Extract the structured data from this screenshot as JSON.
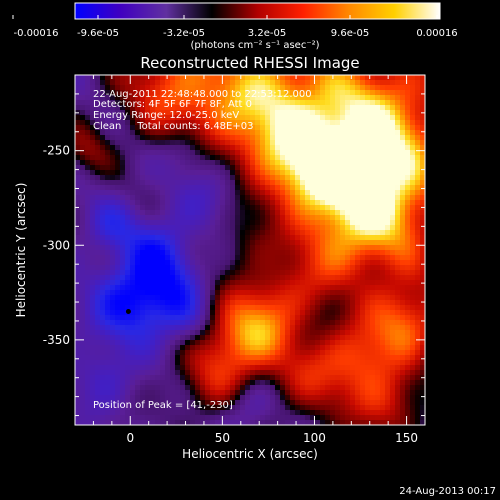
{
  "chart_data": {
    "type": "heatmap",
    "title": "Reconstructed RHESSI Image",
    "xlabel": "Heliocentric X (arcsec)",
    "ylabel": "Heliocentric Y (arcsec)",
    "xlim": [
      -30,
      160
    ],
    "ylim": [
      -395,
      -210
    ],
    "x_ticks": [
      0,
      50,
      100,
      150
    ],
    "x_tick_labels": [
      "0",
      "50",
      "100",
      "150"
    ],
    "y_ticks": [
      -250,
      -300,
      -350
    ],
    "y_tick_labels": [
      "-250",
      "-300",
      "-350"
    ],
    "colorbar": {
      "range": [
        -0.00016,
        0.00016
      ],
      "tick_labels": [
        "-0.00016",
        "-9.6e-05",
        "-3.2e-05",
        "3.2e-05",
        "9.6e-05",
        "0.00016"
      ],
      "label": "(photons cm⁻² s⁻¹ asec⁻²)",
      "colors": [
        "#0000ff",
        "#4000c0",
        "#6030a0",
        "#000000",
        "#b00000",
        "#ff2000",
        "#ff8800",
        "#ffd000",
        "#ffffff"
      ]
    },
    "annotations": {
      "time_range": "22-Aug-2011 22:48:48.000 to 22:53:12.000",
      "detectors": "Detectors: 4F 5F 6F 7F 8F, Att 0",
      "energy_range": "Energy Range: 12.0-25.0 keV",
      "method": "Clean     Total counts: 6.48E+03",
      "peak": "Position of Peak = [41,-230]"
    },
    "marker": {
      "x": -1,
      "y": -335
    },
    "blobs": [
      {
        "x": 70,
        "y": -225,
        "r": 28,
        "a": 1.0
      },
      {
        "x": 135,
        "y": -235,
        "r": 30,
        "a": 0.95
      },
      {
        "x": 125,
        "y": -265,
        "r": 22,
        "a": 0.8
      },
      {
        "x": 20,
        "y": -215,
        "r": 20,
        "a": 0.6
      },
      {
        "x": 95,
        "y": -260,
        "r": 18,
        "a": 0.6
      },
      {
        "x": 145,
        "y": -290,
        "r": 20,
        "a": 0.55
      },
      {
        "x": 110,
        "y": -305,
        "r": 18,
        "a": 0.55
      },
      {
        "x": 60,
        "y": -350,
        "r": 16,
        "a": 0.9
      },
      {
        "x": 80,
        "y": -330,
        "r": 15,
        "a": 0.5
      },
      {
        "x": 150,
        "y": -340,
        "r": 16,
        "a": 0.8
      },
      {
        "x": 125,
        "y": -360,
        "r": 14,
        "a": 0.5
      },
      {
        "x": 100,
        "y": -370,
        "r": 18,
        "a": 0.5
      },
      {
        "x": 140,
        "y": -385,
        "r": 14,
        "a": 0.55
      },
      {
        "x": 40,
        "y": -375,
        "r": 14,
        "a": 0.35
      },
      {
        "x": 60,
        "y": -300,
        "r": 12,
        "a": 0.25
      },
      {
        "x": -25,
        "y": -250,
        "r": 10,
        "a": 0.35
      },
      {
        "x": 0,
        "y": -330,
        "r": 15,
        "a": -0.7
      },
      {
        "x": 20,
        "y": -320,
        "r": 14,
        "a": -0.45
      },
      {
        "x": 15,
        "y": -300,
        "r": 12,
        "a": -0.4
      },
      {
        "x": -10,
        "y": -290,
        "r": 10,
        "a": -0.35
      },
      {
        "x": 30,
        "y": -340,
        "r": 10,
        "a": -0.3
      },
      {
        "x": 45,
        "y": -270,
        "r": 14,
        "a": -0.35
      },
      {
        "x": -15,
        "y": -370,
        "r": 12,
        "a": -0.3
      },
      {
        "x": 30,
        "y": -250,
        "r": 10,
        "a": -0.28
      },
      {
        "x": 65,
        "y": -385,
        "r": 10,
        "a": -0.3
      }
    ],
    "background_level": -0.22
  },
  "footer": {
    "timestamp": "24-Aug-2013 00:17"
  }
}
